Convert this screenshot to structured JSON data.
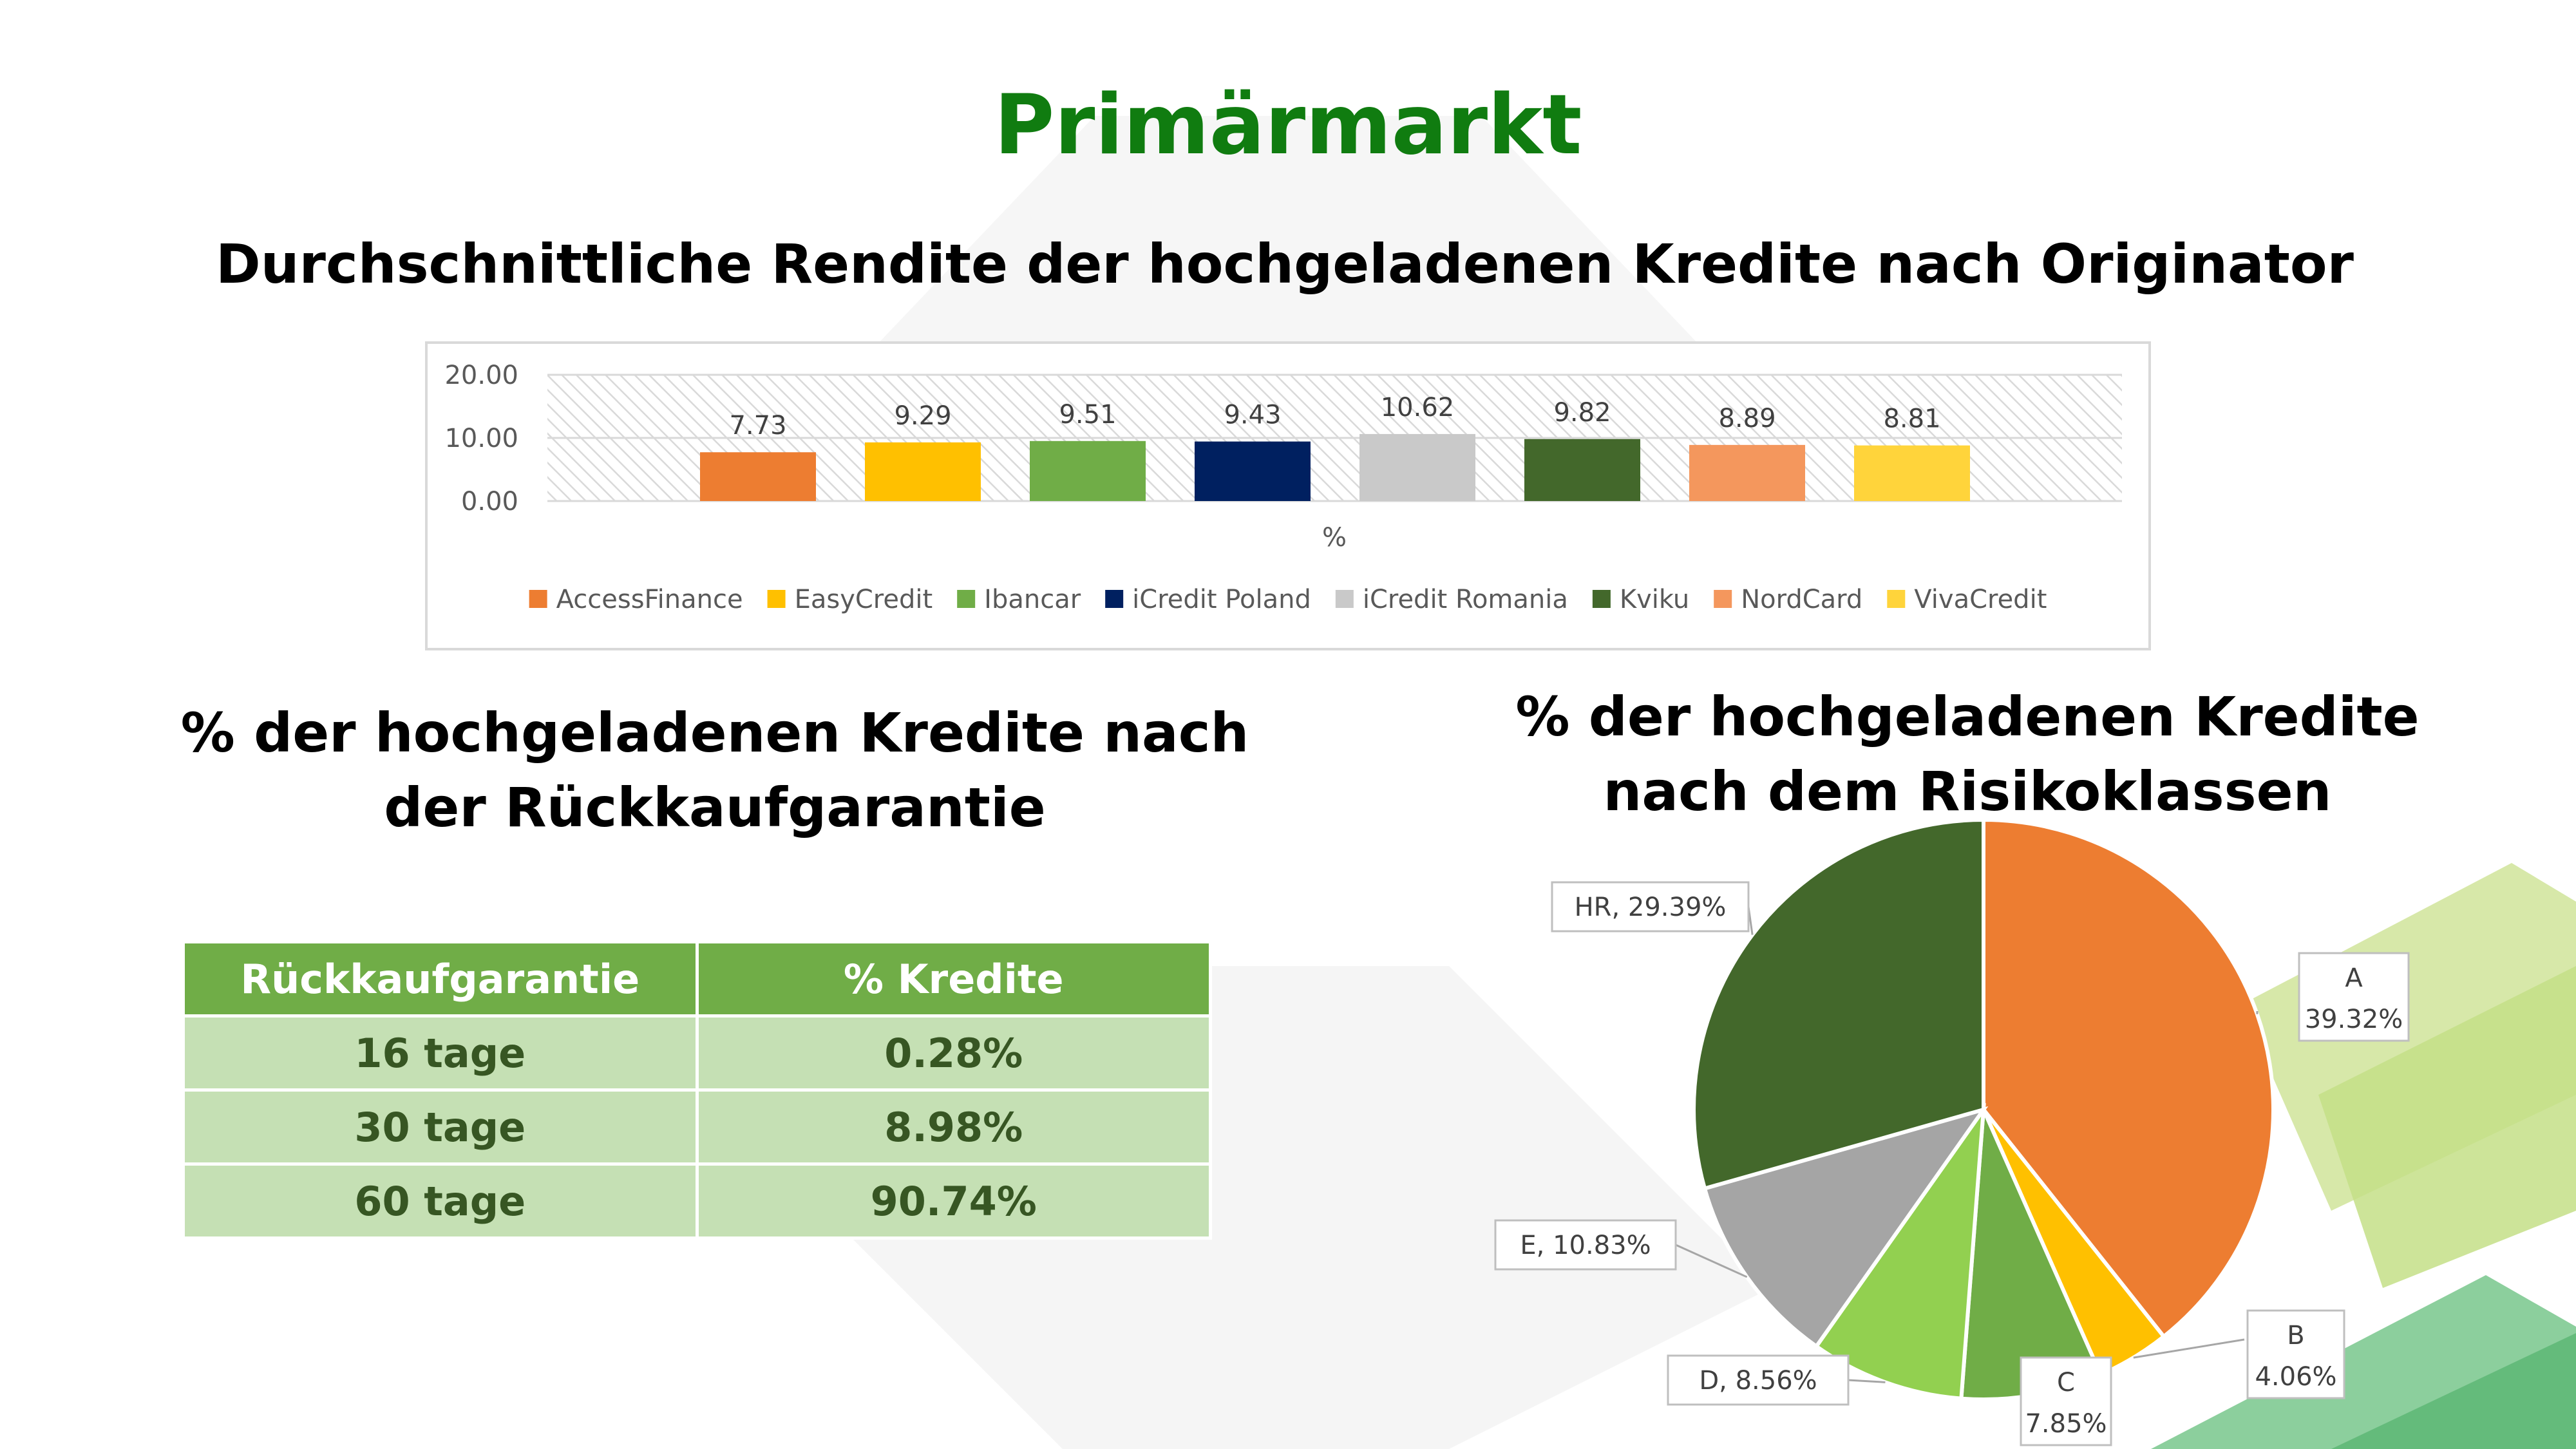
{
  "page": {
    "title": "Primärmarkt",
    "bar_title": "Durchschnittliche Rendite der hochgeladenen Kredite nach Originator",
    "table_title": "% der hochgeladenen Kredite nach der Rückkaufgarantie",
    "pie_title": "% der hochgeladenen Kredite nach dem Risikoklassen",
    "accent_color": "#107c10"
  },
  "table": {
    "headers": [
      "Rückkaufgarantie",
      "% Kredite"
    ],
    "rows": [
      {
        "guarantee": "16 tage",
        "share": "0.28%"
      },
      {
        "guarantee": "30 tage",
        "share": "8.98%"
      },
      {
        "guarantee": "60 tage",
        "share": "90.74%"
      }
    ],
    "header_color": "#70ad47",
    "row_color": "#c5e0b4",
    "text_color": "#375623"
  },
  "chart_data": [
    {
      "type": "bar",
      "title": "Durchschnittliche Rendite der hochgeladenen Kredite nach Originator",
      "xlabel": "%",
      "ylabel": "",
      "ylim": [
        0,
        20
      ],
      "yticks": [
        "0.00",
        "10.00",
        "20.00"
      ],
      "grid": true,
      "legend_position": "bottom",
      "series": [
        {
          "name": "AccessFinance",
          "value": 7.73,
          "label": "7.73",
          "color": "#ed7d31"
        },
        {
          "name": "EasyCredit",
          "value": 9.29,
          "label": "9.29",
          "color": "#ffc000"
        },
        {
          "name": "Ibancar",
          "value": 9.51,
          "label": "9.51",
          "color": "#70ad47"
        },
        {
          "name": "iCredit Poland",
          "value": 9.43,
          "label": "9.43",
          "color": "#002060"
        },
        {
          "name": "iCredit Romania",
          "value": 10.62,
          "label": "10.62",
          "color": "#c9c9c9"
        },
        {
          "name": "Kviku",
          "value": 9.82,
          "label": "9.82",
          "color": "#43682b"
        },
        {
          "name": "NordCard",
          "value": 8.89,
          "label": "8.89",
          "color": "#f4975d"
        },
        {
          "name": "VivaCredit",
          "value": 8.81,
          "label": "8.81",
          "color": "#ffd43b"
        }
      ]
    },
    {
      "type": "pie",
      "title": "% der hochgeladenen Kredite nach dem Risikoklassen",
      "slices": [
        {
          "name": "A",
          "value": 39.32,
          "pct_label": "39.32%",
          "label_layout": "stacked",
          "color": "#ed7d31"
        },
        {
          "name": "B",
          "value": 4.06,
          "pct_label": "4.06%",
          "label_layout": "stacked",
          "color": "#ffc000"
        },
        {
          "name": "C",
          "value": 7.85,
          "pct_label": "7.85%",
          "label_layout": "stacked",
          "color": "#70ad47"
        },
        {
          "name": "D",
          "value": 8.56,
          "pct_label": "8.56%",
          "label_layout": "inline",
          "color": "#92d050"
        },
        {
          "name": "E",
          "value": 10.83,
          "pct_label": "10.83%",
          "label_layout": "inline",
          "color": "#a5a5a5"
        },
        {
          "name": "HR",
          "value": 29.39,
          "pct_label": "29.39%",
          "label_layout": "inline",
          "color": "#43682b"
        }
      ]
    }
  ]
}
